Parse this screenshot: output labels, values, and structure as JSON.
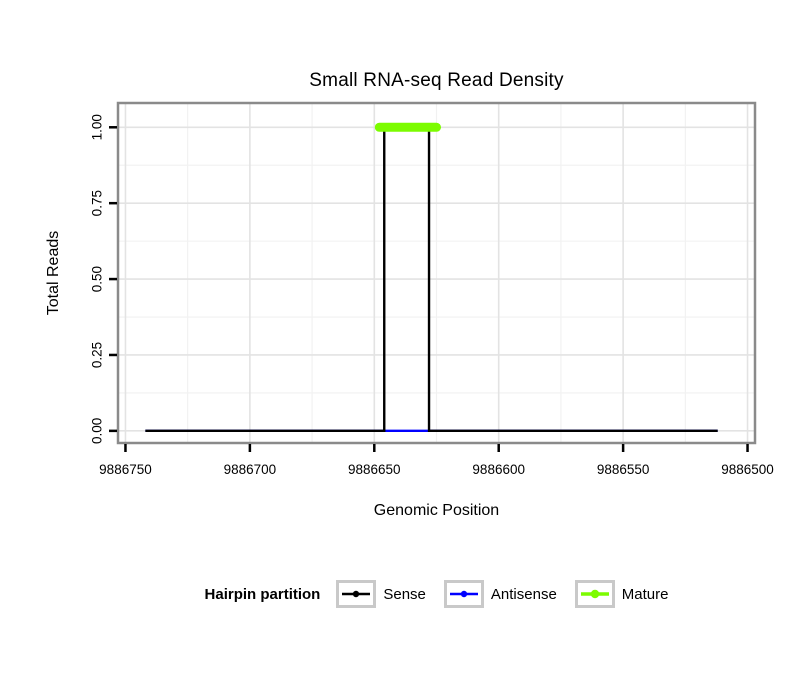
{
  "chart_data": {
    "type": "line",
    "title": "Small RNA-seq Read Density",
    "xlabel": "Genomic Position",
    "ylabel": "Total Reads",
    "x_axis": {
      "tick_values": [
        9886750,
        9886700,
        9886650,
        9886600,
        9886550,
        9886500
      ],
      "tick_labels": [
        "9886750",
        "9886700",
        "9886650",
        "9886600",
        "9886550",
        "9886500"
      ],
      "minor_tick_values": [
        9886725,
        9886675,
        9886625,
        9886575,
        9886525
      ],
      "limits": [
        9886753,
        9886497
      ],
      "reversed": true
    },
    "y_axis": {
      "tick_values": [
        0,
        0.25,
        0.5,
        0.75,
        1
      ],
      "tick_labels": [
        "0.00",
        "0.25",
        "0.50",
        "0.75",
        "1.00"
      ],
      "minor_tick_values": [
        0.125,
        0.375,
        0.625,
        0.875
      ],
      "limits": [
        -0.04,
        1.08
      ]
    },
    "grid": true,
    "panel_border_color": "#8a8a8a",
    "grid_major_color": "#e3e3e3",
    "grid_minor_color": "#f1f1f1",
    "series": [
      {
        "name": "Antisense",
        "color": "#0000ff",
        "width": 2.4,
        "points": [
          [
            9886742,
            0
          ],
          [
            9886512,
            0
          ]
        ]
      },
      {
        "name": "Sense",
        "color": "#000000",
        "width": 2.4,
        "points": [
          [
            9886742,
            0
          ],
          [
            9886646,
            0
          ],
          [
            9886646,
            1
          ],
          [
            9886628,
            1
          ],
          [
            9886628,
            0
          ],
          [
            9886512,
            0
          ]
        ]
      },
      {
        "name": "Mature",
        "color": "#7cfc00",
        "width": 9,
        "linecap": "round",
        "points": [
          [
            9886648,
            1
          ],
          [
            9886625,
            1
          ]
        ]
      }
    ],
    "legend": {
      "title": "Hairpin partition",
      "position": "bottom",
      "entries": [
        {
          "label": "Sense",
          "color": "#000000",
          "line_width": 2.4,
          "point_radius": 3.2
        },
        {
          "label": "Antisense",
          "color": "#0000ff",
          "line_width": 2.4,
          "point_radius": 3.2
        },
        {
          "label": "Mature",
          "color": "#7cfc00",
          "line_width": 3.5,
          "point_radius": 4.2
        }
      ]
    }
  }
}
